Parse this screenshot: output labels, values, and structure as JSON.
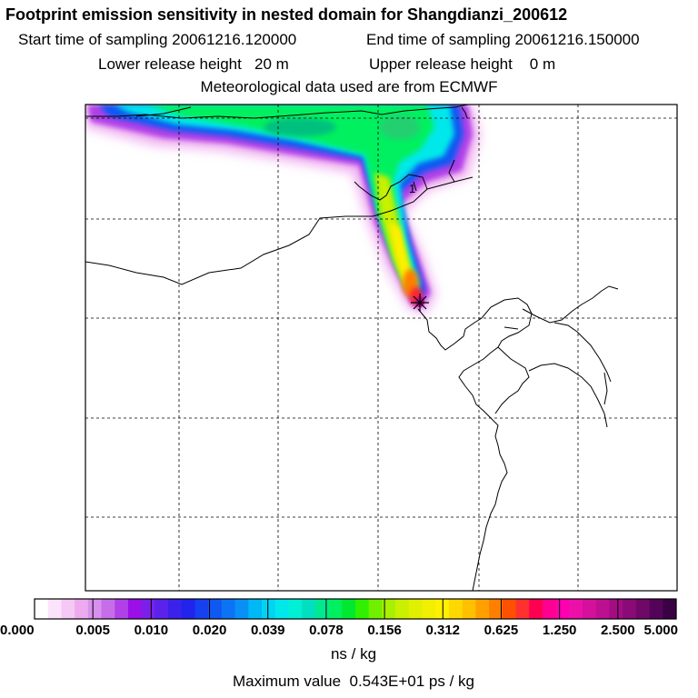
{
  "header": {
    "title": "Footprint emission sensitivity in nested domain for Shangdianzi_200612",
    "start_label": "Start time of sampling",
    "start_value": "20061216.120000",
    "end_label": "End time of sampling",
    "end_value": "20061216.150000",
    "lower_label": "Lower release height",
    "lower_value": "20",
    "lower_unit": "m",
    "upper_label": "Upper release height",
    "upper_value": "0",
    "upper_unit": "m",
    "met_text": "Meteorological data used are from ECMWF"
  },
  "colorbar": {
    "labels": [
      "0.000",
      "0.005",
      "0.010",
      "0.020",
      "0.039",
      "0.078",
      "0.156",
      "0.312",
      "0.625",
      "1.250",
      "2.500",
      "5.000"
    ],
    "colors": [
      "#ffffff",
      "#fbe4fb",
      "#f5c8f5",
      "#eeaaee",
      "#d890ee",
      "#c66ee8",
      "#b040e8",
      "#9a10e6",
      "#7a20e8",
      "#5a22ea",
      "#3a22ea",
      "#2024ec",
      "#1640f0",
      "#1058f2",
      "#0c74f4",
      "#0890f6",
      "#00b8f6",
      "#00d4f2",
      "#00e8ea",
      "#00f0d6",
      "#00e0c0",
      "#00e890",
      "#00f060",
      "#00e830",
      "#30f000",
      "#70f000",
      "#a8f000",
      "#c8f000",
      "#e0f000",
      "#f0f000",
      "#fff000",
      "#ffd800",
      "#ffc000",
      "#ffa000",
      "#ff8000",
      "#ff5000",
      "#ff3030",
      "#ff0050",
      "#ff0090",
      "#ff00b0",
      "#ea10a8",
      "#d4109c",
      "#bc1090",
      "#a40c84",
      "#8a0a78",
      "#700868",
      "#540458",
      "#3a0244"
    ],
    "units": "ns / kg"
  },
  "max_label": "Maximum value",
  "max_value": "0.543E+01 ps / kg",
  "receptor_label": "1"
}
